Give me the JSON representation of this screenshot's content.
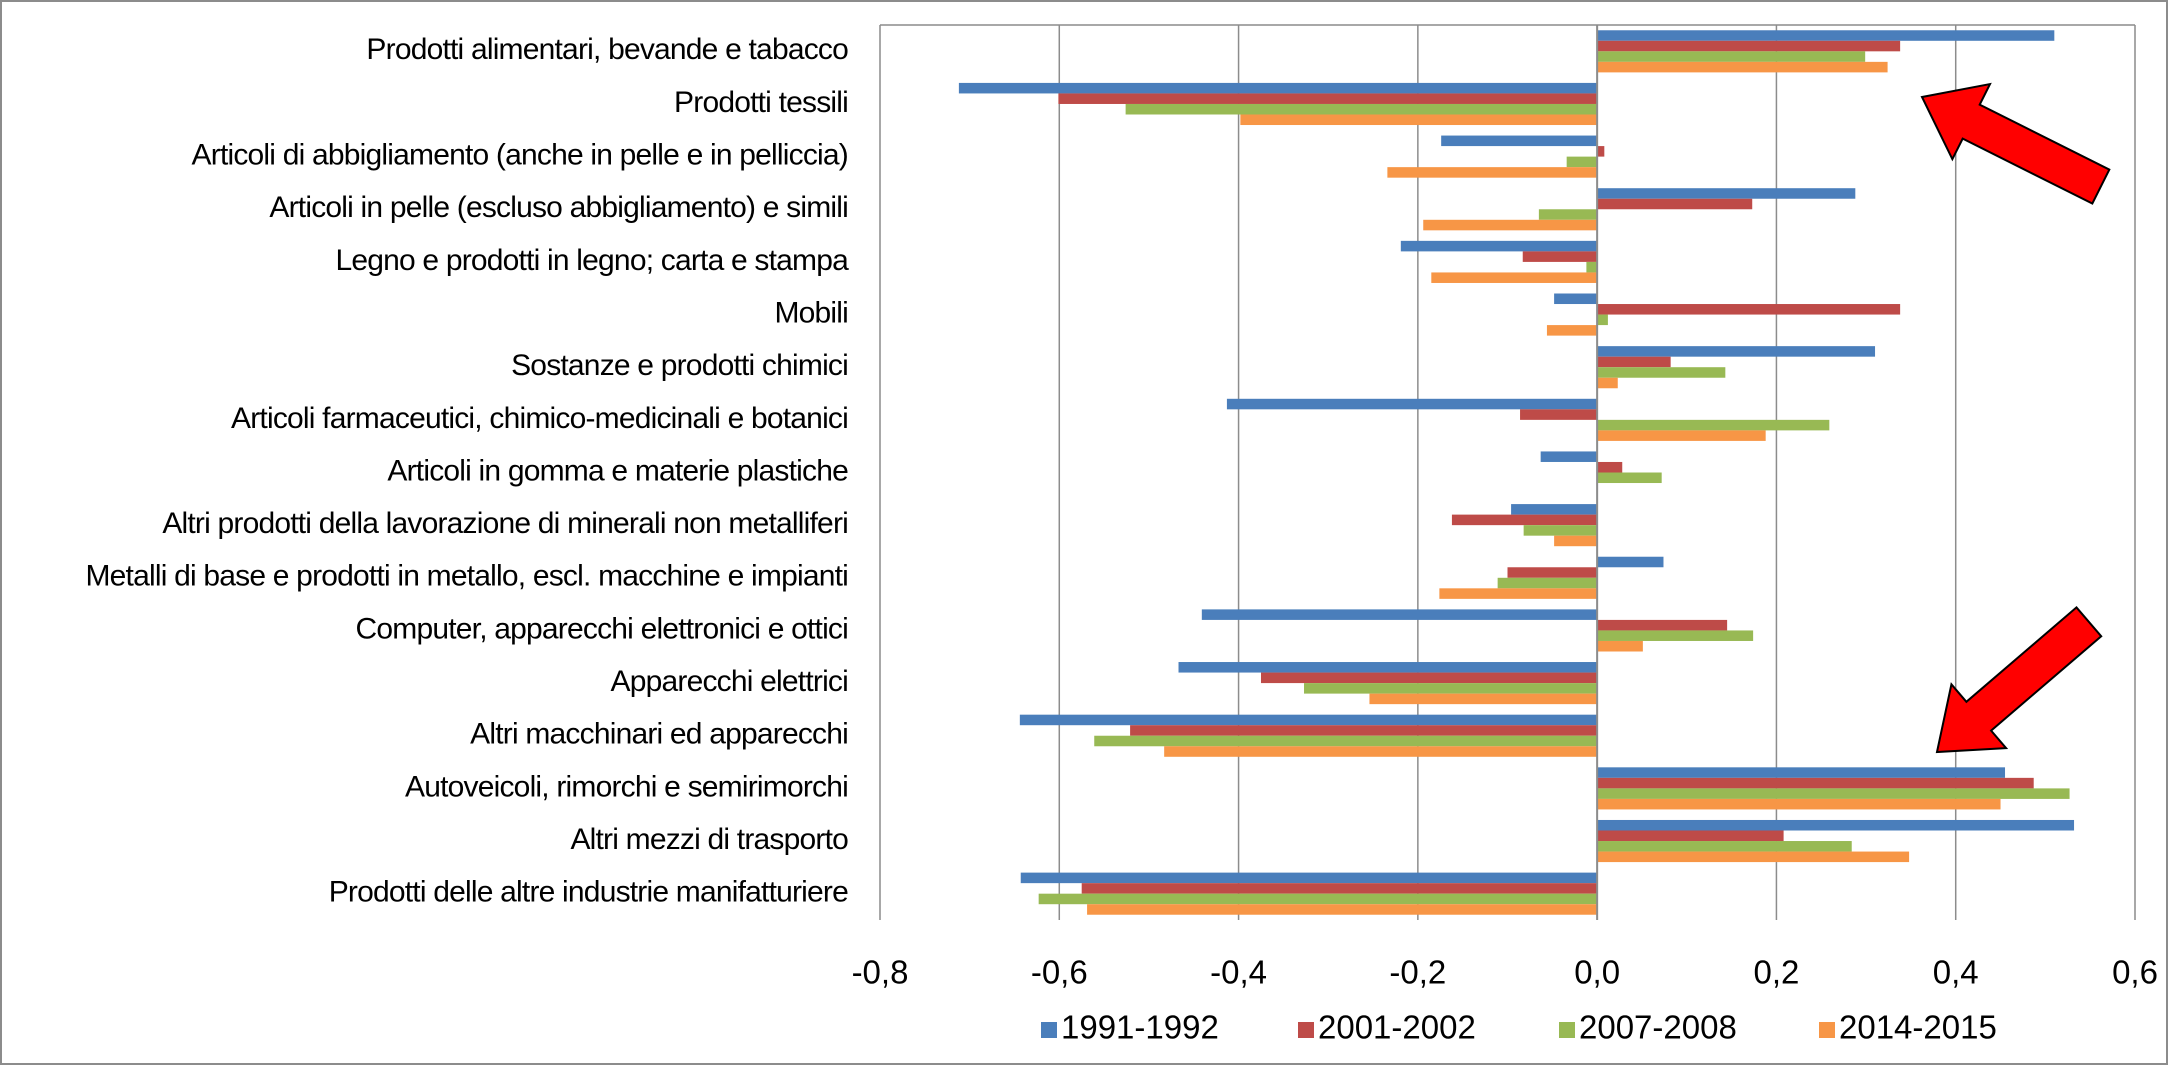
{
  "chart_data": {
    "type": "hbar",
    "categories": [
      "Prodotti alimentari, bevande e tabacco",
      "Prodotti tessili",
      "Articoli di abbigliamento (anche in pelle e in pelliccia)",
      "Articoli in pelle (escluso abbigliamento) e simili",
      "Legno e prodotti in legno; carta e stampa",
      "Mobili",
      "Sostanze e prodotti chimici",
      "Articoli farmaceutici, chimico-medicinali e botanici",
      "Articoli in gomma e materie plastiche",
      "Altri prodotti della lavorazione di minerali non metalliferi",
      "Metalli di base e prodotti in metallo, escl. macchine e impianti",
      "Computer, apparecchi elettronici e ottici",
      "Apparecchi elettrici",
      "Altri macchinari ed apparecchi",
      "Autoveicoli, rimorchi e semirimorchi",
      "Altri mezzi di trasporto",
      "Prodotti delle altre industrie manifatturiere"
    ],
    "series": [
      {
        "name": "1991-1992",
        "color": "#4a7ebb",
        "values": [
          0.51,
          -0.712,
          -0.174,
          0.288,
          -0.219,
          -0.048,
          0.31,
          -0.413,
          -0.063,
          -0.096,
          0.074,
          -0.441,
          -0.467,
          -0.644,
          0.455,
          0.532,
          -0.643
        ]
      },
      {
        "name": "2001-2002",
        "color": "#be4b48",
        "values": [
          0.338,
          -0.601,
          0.008,
          0.173,
          -0.083,
          0.338,
          0.082,
          -0.086,
          0.028,
          -0.162,
          -0.1,
          0.145,
          -0.375,
          -0.521,
          0.487,
          0.208,
          -0.575
        ]
      },
      {
        "name": "2007-2008",
        "color": "#98b954",
        "values": [
          0.299,
          -0.526,
          -0.034,
          -0.065,
          -0.012,
          0.012,
          0.143,
          0.259,
          0.072,
          -0.082,
          -0.111,
          0.174,
          -0.327,
          -0.561,
          0.527,
          0.284,
          -0.623
        ]
      },
      {
        "name": "2014-2015",
        "color": "#f79646",
        "values": [
          0.324,
          -0.398,
          -0.234,
          -0.194,
          -0.185,
          -0.056,
          0.023,
          0.188,
          0,
          -0.048,
          -0.176,
          0.051,
          -0.254,
          -0.483,
          0.45,
          0.348,
          -0.569
        ]
      }
    ],
    "xlim": [
      -0.8,
      0.6
    ],
    "xticks": [
      {
        "value": -0.8,
        "label": "-0,8"
      },
      {
        "value": -0.6,
        "label": "-0,6"
      },
      {
        "value": -0.4,
        "label": "-0,4"
      },
      {
        "value": -0.2,
        "label": "-0,2"
      },
      {
        "value": 0,
        "label": "0,0"
      },
      {
        "value": 0.2,
        "label": "0,2"
      },
      {
        "value": 0.4,
        "label": "0,4"
      },
      {
        "value": 0.6,
        "label": "0,6"
      }
    ],
    "grid": true,
    "legend": "bottom"
  }
}
